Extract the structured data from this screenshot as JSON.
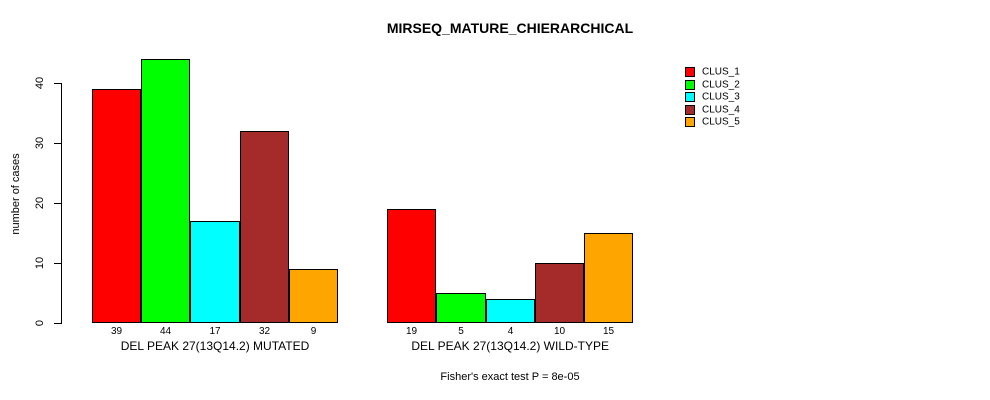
{
  "chart_data": {
    "type": "bar",
    "title": "MIRSEQ_MATURE_CHIERARCHICAL",
    "ylabel": "number of cases",
    "xlabel": "",
    "ylim": [
      0,
      44
    ],
    "yticks": [
      0,
      10,
      20,
      30,
      40
    ],
    "grid": false,
    "legend_position": "top-right",
    "bar_value_labels_shown": true,
    "categories": [
      "DEL PEAK 27(13Q14.2) MUTATED",
      "DEL PEAK 27(13Q14.2) WILD-TYPE"
    ],
    "series": [
      {
        "name": "CLUS_1",
        "color": "#FF0000",
        "values": [
          39,
          19
        ]
      },
      {
        "name": "CLUS_2",
        "color": "#00FF00",
        "values": [
          44,
          5
        ]
      },
      {
        "name": "CLUS_3",
        "color": "#00FFFF",
        "values": [
          17,
          4
        ]
      },
      {
        "name": "CLUS_4",
        "color": "#A52A2A",
        "values": [
          32,
          10
        ]
      },
      {
        "name": "CLUS_5",
        "color": "#FFA500",
        "values": [
          9,
          15
        ]
      }
    ],
    "annotation": "Fisher's exact test P = 8e-05"
  },
  "colors": {
    "background": "#FFFFFF",
    "axis": "#000000",
    "text": "#000000"
  }
}
